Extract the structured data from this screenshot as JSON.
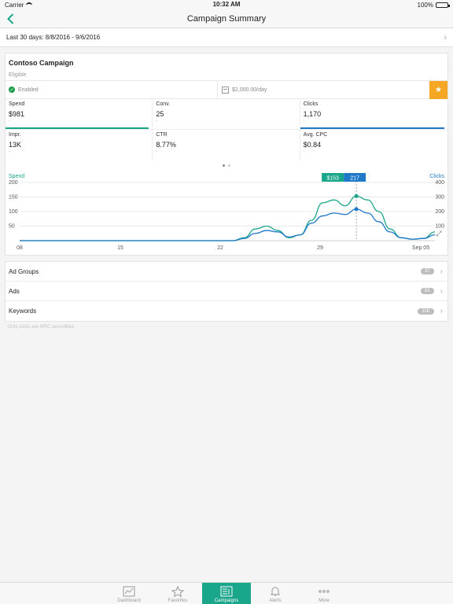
{
  "status": {
    "carrier": "Carrier",
    "time": "10:32 AM",
    "battery": "100%"
  },
  "nav": {
    "title": "Campaign Summary"
  },
  "date_range": "Last 30 days: 8/8/2016 - 9/6/2016",
  "campaign": {
    "name": "Contoso Campaign",
    "status": "Eligible",
    "state": "Enabled",
    "budget": "$2,000.00/day"
  },
  "metrics": [
    {
      "label": "Spend",
      "value": "$981",
      "dash": "-"
    },
    {
      "label": "Conv.",
      "value": "25",
      "dash": "-"
    },
    {
      "label": "Clicks",
      "value": "1,170",
      "dash": "-"
    },
    {
      "label": "Impr.",
      "value": "13K",
      "dash": "-"
    },
    {
      "label": "CTR",
      "value": "8.77%",
      "dash": "-"
    },
    {
      "label": "Avg. CPC",
      "value": "$0.84",
      "dash": "-"
    }
  ],
  "colors": {
    "spend": "#1aa68a",
    "clicks": "#1f78c8",
    "star": "#f5a623"
  },
  "chart_data": {
    "type": "line",
    "left_label": "Spend",
    "right_label": "Clicks",
    "left_ticks": [
      "200",
      "150",
      "100",
      "50"
    ],
    "right_ticks": [
      "400",
      "300",
      "200",
      "100"
    ],
    "x_ticks": [
      "08",
      "15",
      "22",
      "29",
      "Sep 05"
    ],
    "ylim_left": [
      0,
      200
    ],
    "ylim_right": [
      0,
      400
    ],
    "tooltip": {
      "spend": "$153",
      "clicks": "217"
    },
    "series": [
      {
        "name": "Spend",
        "axis": "left",
        "values": [
          0,
          0,
          0,
          0,
          0,
          0,
          0,
          0,
          0,
          0,
          0,
          0,
          0,
          0,
          0,
          0,
          0,
          0,
          0,
          0,
          10,
          40,
          50,
          35,
          10,
          20,
          70,
          130,
          140,
          120,
          153,
          140,
          100,
          40,
          10,
          5,
          8,
          30
        ]
      },
      {
        "name": "Clicks",
        "axis": "right",
        "values": [
          0,
          0,
          0,
          0,
          0,
          0,
          0,
          0,
          0,
          0,
          0,
          0,
          0,
          0,
          0,
          0,
          0,
          0,
          0,
          0,
          15,
          50,
          70,
          60,
          25,
          40,
          120,
          170,
          190,
          180,
          217,
          190,
          130,
          60,
          20,
          10,
          15,
          40
        ]
      }
    ]
  },
  "lists": [
    {
      "label": "Ad Groups",
      "badge": "37"
    },
    {
      "label": "Ads",
      "badge": "81"
    },
    {
      "label": "Keywords",
      "badge": "11K"
    }
  ],
  "footnote": "Only clicks are MRC accredited.",
  "tabs": [
    {
      "label": "Dashboard",
      "icon": "dashboard-icon"
    },
    {
      "label": "Favorites",
      "icon": "star-icon"
    },
    {
      "label": "Campaigns",
      "icon": "campaigns-icon",
      "active": true
    },
    {
      "label": "Alerts",
      "icon": "bell-icon"
    },
    {
      "label": "More",
      "icon": "more-icon"
    }
  ]
}
